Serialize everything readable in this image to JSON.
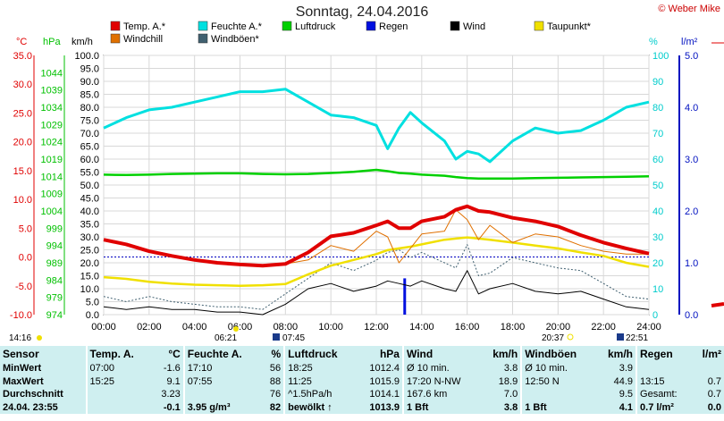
{
  "title": "Sonntag, 24.04.2016",
  "copyright": "© Weber Mike",
  "colors": {
    "temp": "#e00000",
    "humidity": "#00e0e0",
    "pressure": "#00d000",
    "rain": "#0010e0",
    "wind": "#000000",
    "dewpoint": "#f0e000",
    "windchill": "#e07000",
    "gusts": "#406070",
    "axis_temp": "#e00000",
    "axis_pressure": "#00c000",
    "axis_humidity": "#00cccc",
    "axis_rain": "#0010c0"
  },
  "legend": [
    {
      "key": "temp",
      "label": "Temp. A.*"
    },
    {
      "key": "humidity",
      "label": "Feuchte A.*"
    },
    {
      "key": "pressure",
      "label": "Luftdruck"
    },
    {
      "key": "rain",
      "label": "Regen"
    },
    {
      "key": "wind",
      "label": "Wind"
    },
    {
      "key": "dewpoint",
      "label": "Taupunkt*"
    },
    {
      "key": "windchill",
      "label": "Windchill"
    },
    {
      "key": "gusts",
      "label": "Windböen*"
    }
  ],
  "axis_units": {
    "temp": "°C",
    "pressure": "hPa",
    "wind": "km/h",
    "humidity": "%",
    "rain": "l/m²"
  },
  "sun_times": {
    "left_time": "14:16",
    "sunrise": "06:21",
    "moon_set": "07:45",
    "sunset": "20:37",
    "moon_rise": "22:51"
  },
  "chart_data": {
    "type": "line",
    "x": [
      "00:00",
      "01:00",
      "02:00",
      "03:00",
      "04:00",
      "05:00",
      "06:00",
      "07:00",
      "08:00",
      "09:00",
      "10:00",
      "11:00",
      "12:00",
      "12:30",
      "13:00",
      "13:30",
      "14:00",
      "15:00",
      "15:30",
      "16:00",
      "16:30",
      "17:00",
      "18:00",
      "19:00",
      "20:00",
      "21:00",
      "22:00",
      "23:00",
      "24:00"
    ],
    "x_ticks": [
      "00:00",
      "02:00",
      "04:00",
      "06:00",
      "08:00",
      "10:00",
      "12:00",
      "14:00",
      "16:00",
      "18:00",
      "20:00",
      "22:00",
      "24:00"
    ],
    "axes": {
      "temp": {
        "ylim": [
          -10,
          35
        ],
        "ticks": [
          "35.0",
          "30.0",
          "25.0",
          "20.0",
          "15.0",
          "10.0",
          "5.0",
          "0.0",
          "-5.0",
          "-10.0"
        ]
      },
      "pressure": {
        "ylim": [
          974,
          1049
        ],
        "ticks": [
          "1044",
          "1039",
          "1034",
          "1029",
          "1024",
          "1019",
          "1014",
          "1009",
          "1004",
          "999",
          "994",
          "989",
          "984",
          "979",
          "974"
        ]
      },
      "wind": {
        "ylim": [
          0,
          100
        ],
        "ticks": [
          "100.0",
          "95.0",
          "90.0",
          "85.0",
          "80.0",
          "75.0",
          "70.0",
          "65.0",
          "60.0",
          "55.0",
          "50.0",
          "45.0",
          "40.0",
          "35.0",
          "30.0",
          "25.0",
          "20.0",
          "15.0",
          "10.0",
          "5.0",
          "0.0"
        ]
      },
      "humidity": {
        "ylim": [
          0,
          100
        ],
        "ticks": [
          "100",
          "90",
          "80",
          "70",
          "60",
          "50",
          "40",
          "30",
          "20",
          "10",
          "0"
        ]
      },
      "rain": {
        "ylim": [
          0,
          5
        ],
        "ticks": [
          "5.0",
          "4.0",
          "3.0",
          "2.0",
          "1.0",
          "0.0"
        ]
      }
    },
    "series": [
      {
        "name": "Temp. A.*",
        "axis": "temp",
        "values": [
          3.0,
          2.2,
          1.0,
          0.2,
          -0.5,
          -1.0,
          -1.3,
          -1.5,
          -1.2,
          0.8,
          3.6,
          4.2,
          5.5,
          6.2,
          5.0,
          5.0,
          6.2,
          7.0,
          8.2,
          8.8,
          8.0,
          7.8,
          6.8,
          6.2,
          5.3,
          3.8,
          2.5,
          1.5,
          0.6
        ]
      },
      {
        "name": "Feuchte A.*",
        "axis": "humidity",
        "values": [
          72,
          76,
          79,
          80,
          82,
          84,
          86,
          86,
          87,
          82,
          77,
          76,
          73,
          64,
          72,
          78,
          74,
          67,
          60,
          63,
          62,
          59,
          67,
          72,
          70,
          71,
          75,
          80,
          82
        ]
      },
      {
        "name": "Luftdruck",
        "axis": "pressure",
        "values": [
          1014.5,
          1014.4,
          1014.5,
          1014.7,
          1014.8,
          1014.9,
          1014.9,
          1014.7,
          1014.6,
          1014.7,
          1015.0,
          1015.3,
          1015.9,
          1015.5,
          1015.0,
          1014.8,
          1014.5,
          1014.2,
          1013.8,
          1013.5,
          1013.4,
          1013.4,
          1013.4,
          1013.5,
          1013.6,
          1013.7,
          1013.8,
          1013.9,
          1014.0
        ]
      },
      {
        "name": "Taupunkt*",
        "axis": "temp",
        "values": [
          -3.5,
          -3.8,
          -4.3,
          -4.6,
          -4.8,
          -4.9,
          -5.0,
          -4.9,
          -4.7,
          -3.0,
          -1.5,
          -0.5,
          0.5,
          1.2,
          1.5,
          1.8,
          2.2,
          3.0,
          3.2,
          3.4,
          3.2,
          3.0,
          2.5,
          2.0,
          1.5,
          0.8,
          0.2,
          -1.0,
          -1.7
        ]
      },
      {
        "name": "Windchill",
        "axis": "temp",
        "values": [
          3.0,
          2.2,
          1.0,
          0.2,
          -0.5,
          -1.0,
          -1.3,
          -1.5,
          -1.2,
          -0.5,
          2.0,
          1.0,
          4.5,
          3.5,
          -1.0,
          1.5,
          4.0,
          4.5,
          8.2,
          6.5,
          3.0,
          5.5,
          2.5,
          4.0,
          3.5,
          2.0,
          1.0,
          0.5,
          0.5
        ]
      },
      {
        "name": "Wind",
        "axis": "wind",
        "values": [
          3,
          2,
          3,
          2,
          2,
          1,
          1,
          0,
          4,
          10,
          12,
          9,
          11,
          13,
          12,
          11,
          13,
          10,
          9,
          17,
          8,
          10,
          12,
          9,
          8,
          9,
          6,
          3,
          2
        ]
      },
      {
        "name": "Windböen*",
        "axis": "wind",
        "values": [
          7,
          5,
          7,
          5,
          4,
          3,
          3,
          2,
          8,
          14,
          20,
          17,
          21,
          24,
          25,
          22,
          24,
          20,
          18,
          27,
          15,
          16,
          22,
          20,
          18,
          17,
          12,
          7,
          6
        ]
      }
    ],
    "rain_event": {
      "x": "13:15",
      "value": 0.7
    }
  },
  "table": {
    "columns": [
      {
        "label": "Sensor",
        "unit": ""
      },
      {
        "label": "Temp. A.",
        "unit": "°C"
      },
      {
        "label": "Feuchte A.",
        "unit": "%"
      },
      {
        "label": "Luftdruck",
        "unit": "hPa"
      },
      {
        "label": "Wind",
        "unit": "km/h"
      },
      {
        "label": "Windböen",
        "unit": "km/h"
      },
      {
        "label": "Regen",
        "unit": "l/m²"
      }
    ],
    "rows": [
      {
        "label": "MinWert",
        "cells": [
          [
            "07:00",
            "-1.6"
          ],
          [
            "17:10",
            "56"
          ],
          [
            "18:25",
            "1012.4"
          ],
          [
            "Ø 10 min.",
            "3.8"
          ],
          [
            "Ø 10 min.",
            "3.9"
          ],
          [
            "",
            ""
          ]
        ]
      },
      {
        "label": "MaxWert",
        "cells": [
          [
            "15:25",
            "9.1"
          ],
          [
            "07:55",
            "88"
          ],
          [
            "11:25",
            "1015.9"
          ],
          [
            "17:20  N-NW",
            "18.9"
          ],
          [
            "12:50  N",
            "44.9"
          ],
          [
            "13:15",
            "0.7"
          ]
        ]
      },
      {
        "label": "Durchschnitt",
        "cells": [
          [
            "",
            "3.23"
          ],
          [
            "",
            "76"
          ],
          [
            "^1.5hPa/h",
            "1014.1"
          ],
          [
            "167.6 km",
            "7.0"
          ],
          [
            "",
            "9.5"
          ],
          [
            "Gesamt:",
            "0.7"
          ]
        ]
      },
      {
        "label": "24.04. 23:55",
        "cells": [
          [
            "",
            "-0.1"
          ],
          [
            "3.95 g/m³",
            "82"
          ],
          [
            "bewölkt  ↑",
            "1013.9"
          ],
          [
            "1 Bft",
            "3.8"
          ],
          [
            "1 Bft",
            "4.1"
          ],
          [
            "0.7 l/m²",
            "0.0"
          ]
        ]
      }
    ]
  }
}
